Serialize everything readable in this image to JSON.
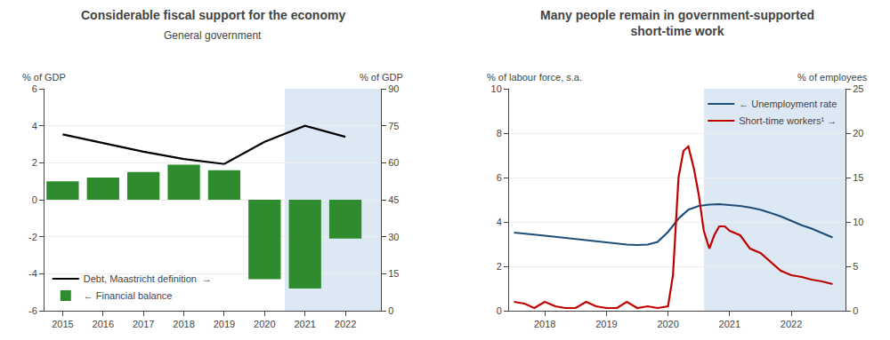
{
  "chart_data": [
    {
      "type": "bar",
      "title": "Considerable fiscal support for the economy",
      "subtitle": "General government",
      "ylabel": "% of GDP",
      "y2label": "% of GDP",
      "x": [
        2015,
        2016,
        2017,
        2018,
        2019,
        2020,
        2021,
        2022
      ],
      "series": [
        {
          "name": "Debt, Maastricht definition  →",
          "type": "line",
          "color": "#000000",
          "axis": "y2",
          "values": [
            71.5,
            68.0,
            64.5,
            61.5,
            59.5,
            68.5,
            75.0,
            70.5
          ]
        },
        {
          "name": "← Financial balance",
          "type": "bar",
          "color": "#2e8b2e",
          "values": [
            1.0,
            1.2,
            1.5,
            1.9,
            1.6,
            -4.3,
            -4.8,
            -2.1
          ]
        }
      ],
      "xlim": [
        2014.55,
        2022.88
      ],
      "xticks": [
        2015,
        2016,
        2017,
        2018,
        2019,
        2020,
        2021,
        2022
      ],
      "ylim": [
        -6,
        6
      ],
      "yticks": [
        -6,
        -4,
        -2,
        0,
        2,
        4,
        6
      ],
      "y2lim": [
        0,
        90
      ],
      "y2ticks": [
        0,
        15,
        30,
        45,
        60,
        75,
        90
      ],
      "shade": {
        "x": [
          2020.5,
          2022.88
        ],
        "color": "#dde8f5"
      },
      "grid": "y",
      "legend": "lower left"
    },
    {
      "type": "line",
      "title": "Many people remain in government-supported\nshort-time work",
      "ylabel": "% of labour force, s.a.",
      "y2label": "% of employees",
      "series": [
        {
          "name": "← Unemployment rate",
          "color": "#1f4e79",
          "x": [
            2017.5,
            2017.67,
            2017.83,
            2018.0,
            2018.17,
            2018.33,
            2018.5,
            2018.67,
            2018.83,
            2019.0,
            2019.17,
            2019.33,
            2019.5,
            2019.67,
            2019.83,
            2020.0,
            2020.17,
            2020.33,
            2020.5,
            2020.67,
            2020.83,
            2021.0,
            2021.17,
            2021.33,
            2021.5,
            2021.67,
            2021.83,
            2022.0,
            2022.17,
            2022.33,
            2022.5,
            2022.67
          ],
          "values": [
            3.52,
            3.48,
            3.43,
            3.38,
            3.33,
            3.28,
            3.22,
            3.17,
            3.12,
            3.07,
            3.02,
            2.98,
            2.96,
            2.98,
            3.1,
            3.55,
            4.15,
            4.55,
            4.72,
            4.78,
            4.8,
            4.77,
            4.72,
            4.65,
            4.55,
            4.4,
            4.25,
            4.05,
            3.85,
            3.7,
            3.5,
            3.3
          ]
        },
        {
          "name": "Short-time workers¹ →",
          "color": "#c00000",
          "axis": "y2",
          "x": [
            2017.5,
            2017.67,
            2017.83,
            2018.0,
            2018.17,
            2018.33,
            2018.5,
            2018.67,
            2018.83,
            2019.0,
            2019.17,
            2019.33,
            2019.5,
            2019.67,
            2019.83,
            2020.0,
            2020.08,
            2020.17,
            2020.25,
            2020.33,
            2020.42,
            2020.5,
            2020.58,
            2020.67,
            2020.75,
            2020.83,
            2020.92,
            2021.0,
            2021.17,
            2021.33,
            2021.5,
            2021.67,
            2021.83,
            2022.0,
            2022.17,
            2022.33,
            2022.5,
            2022.67
          ],
          "values": [
            1.0,
            0.8,
            0.3,
            1.0,
            0.5,
            0.3,
            0.3,
            1.0,
            0.5,
            0.3,
            0.3,
            1.0,
            0.3,
            0.5,
            0.3,
            0.5,
            4.0,
            15.0,
            18.0,
            18.5,
            16.0,
            13.0,
            9.0,
            7.0,
            8.5,
            9.5,
            9.5,
            9.0,
            8.5,
            7.0,
            6.5,
            5.5,
            4.5,
            4.0,
            3.8,
            3.5,
            3.3,
            3.0
          ]
        }
      ],
      "xlim": [
        2017.42,
        2022.88
      ],
      "xticks": [
        2018,
        2019,
        2020,
        2021,
        2022
      ],
      "ylim": [
        0,
        10
      ],
      "yticks": [
        0,
        2,
        4,
        6,
        8,
        10
      ],
      "y2lim": [
        0,
        25
      ],
      "y2ticks": [
        0,
        5,
        10,
        15,
        20,
        25
      ],
      "shade": {
        "x": [
          2020.583,
          2022.88
        ],
        "color": "#dde8f5"
      },
      "grid": "y",
      "legend": "upper right"
    }
  ]
}
